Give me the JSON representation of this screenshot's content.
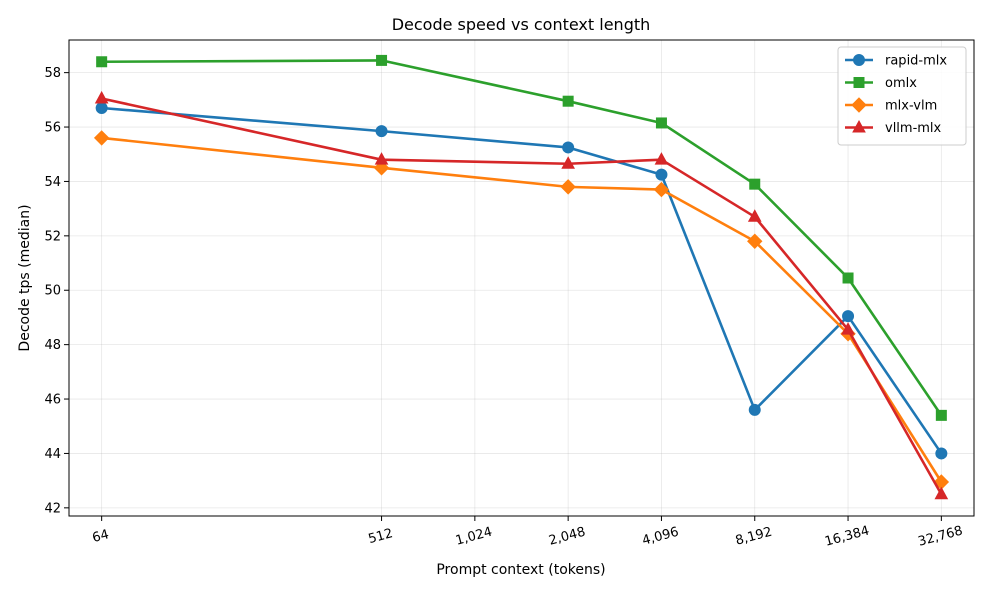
{
  "chart_data": {
    "type": "line",
    "title": "Decode speed vs context length",
    "xlabel": "Prompt context (tokens)",
    "ylabel": "Decode tps (median)",
    "x_scale": "log2",
    "x_ticks": [
      64,
      512,
      1024,
      2048,
      4096,
      8192,
      16384,
      32768
    ],
    "x_tick_labels": [
      "64",
      "512",
      "1,024",
      "2,048",
      "4,096",
      "8,192",
      "16,384",
      "32,768"
    ],
    "ylim": [
      41.7,
      59.2
    ],
    "y_ticks": [
      42,
      44,
      46,
      48,
      50,
      52,
      54,
      56,
      58
    ],
    "y_tick_labels": [
      "42",
      "44",
      "46",
      "48",
      "50",
      "52",
      "54",
      "56",
      "58"
    ],
    "grid": true,
    "legend_position": "top-right",
    "x": [
      64,
      512,
      2048,
      4096,
      8192,
      16384,
      32768
    ],
    "series": [
      {
        "name": "rapid-mlx",
        "color": "#1f77b4",
        "marker": "circle",
        "values": [
          56.7,
          55.85,
          55.25,
          54.25,
          45.6,
          49.05,
          44.0
        ]
      },
      {
        "name": "omlx",
        "color": "#2ca02c",
        "marker": "square",
        "values": [
          58.4,
          58.45,
          56.95,
          56.15,
          53.9,
          50.45,
          45.4
        ]
      },
      {
        "name": "mlx-vlm",
        "color": "#ff7f0e",
        "marker": "diamond",
        "values": [
          55.6,
          54.5,
          53.8,
          53.7,
          51.8,
          48.4,
          42.95
        ]
      },
      {
        "name": "vllm-mlx",
        "color": "#d62728",
        "marker": "triangle",
        "values": [
          57.05,
          54.8,
          54.65,
          54.8,
          52.7,
          48.55,
          42.5
        ]
      }
    ]
  }
}
